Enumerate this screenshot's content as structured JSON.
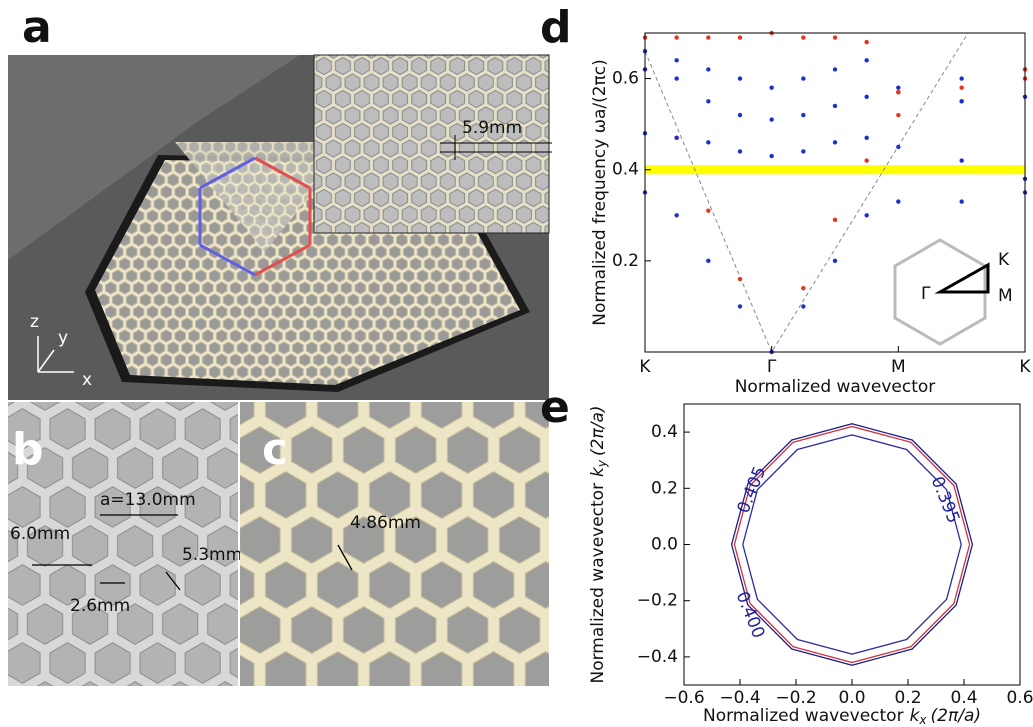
{
  "panel_a": {
    "label": "a",
    "inset_dimension": "5.9mm",
    "axis_labels": [
      "z",
      "y",
      "x"
    ]
  },
  "panel_b": {
    "label": "b",
    "dimensions": [
      "a=13.0mm",
      "6.0mm",
      "5.3mm",
      "2.6mm"
    ]
  },
  "panel_c": {
    "label": "c",
    "dimensions": [
      "4.86mm"
    ]
  },
  "chart_data": [
    {
      "type": "band",
      "panel": "d",
      "ylabel": "Normalized frequency ωa/(2πc)",
      "xlabel": "Normalized wavevector",
      "xlim": [
        0,
        3
      ],
      "ylim": [
        0,
        0.7
      ],
      "xticks": [
        {
          "value": 0,
          "label": "K"
        },
        {
          "value": 1,
          "label": "Γ"
        },
        {
          "value": 2,
          "label": "M"
        },
        {
          "value": 3,
          "label": "K"
        }
      ],
      "yticks": [
        0.2,
        0.4,
        0.6
      ],
      "highlight_band": [
        0.39,
        0.41
      ],
      "highlight_color": "#ffff00",
      "light_line": {
        "x": [
          0,
          1,
          2.55
        ],
        "values": [
          0.66,
          0,
          0.7
        ],
        "color": "#888888"
      },
      "x": [
        0,
        0.25,
        0.5,
        0.75,
        1,
        1.25,
        1.5,
        1.75,
        2,
        2.5,
        3
      ],
      "series": [
        {
          "color": "#e8341c",
          "values": [
            0.62,
            0.47,
            0.31,
            0.16,
            0,
            0.14,
            0.29,
            0.42,
            0.52,
            0.55,
            0.6
          ]
        },
        {
          "color": "#1f2fd0",
          "values": [
            0.35,
            0.3,
            0.2,
            0.1,
            0,
            0.1,
            0.2,
            0.3,
            0.33,
            0.33,
            0.35
          ]
        },
        {
          "color": "#1f2fd0",
          "values": [
            0.48,
            0.47,
            0.46,
            0.44,
            0.43,
            0.44,
            0.46,
            0.47,
            0.45,
            0.42,
            0.38
          ]
        },
        {
          "color": "#1f2fd0",
          "values": [
            0.62,
            0.6,
            0.55,
            0.52,
            0.51,
            0.52,
            0.54,
            0.56,
            0.58,
            0.6,
            0.62
          ]
        },
        {
          "color": "#1f2fd0",
          "values": [
            0.66,
            0.64,
            0.62,
            0.6,
            0.58,
            0.6,
            0.62,
            0.64,
            0.57,
            0.55,
            0.56
          ]
        },
        {
          "color": "#e8341c",
          "values": [
            0.69,
            0.69,
            0.69,
            0.69,
            0.7,
            0.69,
            0.69,
            0.68,
            0.57,
            0.58,
            0.62
          ]
        }
      ],
      "bz_labels": [
        "Γ",
        "K",
        "M"
      ]
    },
    {
      "type": "contour",
      "panel": "e",
      "ylabel": {
        "text": "Normalized wavevector",
        "var": "k",
        "sub": "y",
        "unit": "(2π/a)"
      },
      "xlabel": {
        "text": "Normalized wavevector",
        "var": "k",
        "sub": "x",
        "unit": "(2π/a)"
      },
      "xlim": [
        -0.6,
        0.6
      ],
      "ylim": [
        -0.5,
        0.5
      ],
      "xticks": [
        {
          "value": -0.6,
          "label": "−0.6"
        },
        {
          "value": -0.4,
          "label": "−0.4"
        },
        {
          "value": -0.2,
          "label": "−0.2"
        },
        {
          "value": 0,
          "label": "0.0"
        },
        0.2,
        0.4,
        0.6
      ],
      "yticks": [
        {
          "value": -0.4,
          "label": "−0.4"
        },
        {
          "value": -0.2,
          "label": "−0.2"
        },
        {
          "value": 0,
          "label": "0.0"
        },
        0.2,
        0.4
      ],
      "levels": [
        0.395,
        0.405,
        0.4
      ],
      "value_labels": [
        "0.395",
        "0.405",
        "0.400"
      ],
      "series": [
        {
          "color": "#1c1c8c",
          "x": [
            0.43,
            0.372,
            0.215,
            0,
            -0.215,
            -0.372,
            -0.43,
            -0.372,
            -0.215,
            0,
            0.215,
            0.372
          ],
          "values": [
            0,
            0.215,
            0.372,
            0.43,
            0.372,
            0.215,
            0,
            -0.215,
            -0.372,
            -0.43,
            -0.372,
            -0.215
          ]
        },
        {
          "color": "#d0303a",
          "x": [
            0.42,
            0.364,
            0.21,
            0,
            -0.21,
            -0.364,
            -0.42,
            -0.364,
            -0.21,
            0,
            0.21,
            0.364
          ],
          "values": [
            0,
            0.21,
            0.364,
            0.42,
            0.364,
            0.21,
            0,
            -0.21,
            -0.364,
            -0.42,
            -0.364,
            -0.21
          ]
        },
        {
          "color": "#2a2aa0",
          "x": [
            0.39,
            0.338,
            0.195,
            0,
            -0.195,
            -0.338,
            -0.39,
            -0.338,
            -0.195,
            0,
            0.195,
            0.338
          ],
          "values": [
            0,
            0.195,
            0.338,
            0.39,
            0.338,
            0.195,
            0,
            -0.195,
            -0.338,
            -0.39,
            -0.338,
            -0.195
          ]
        }
      ]
    }
  ]
}
